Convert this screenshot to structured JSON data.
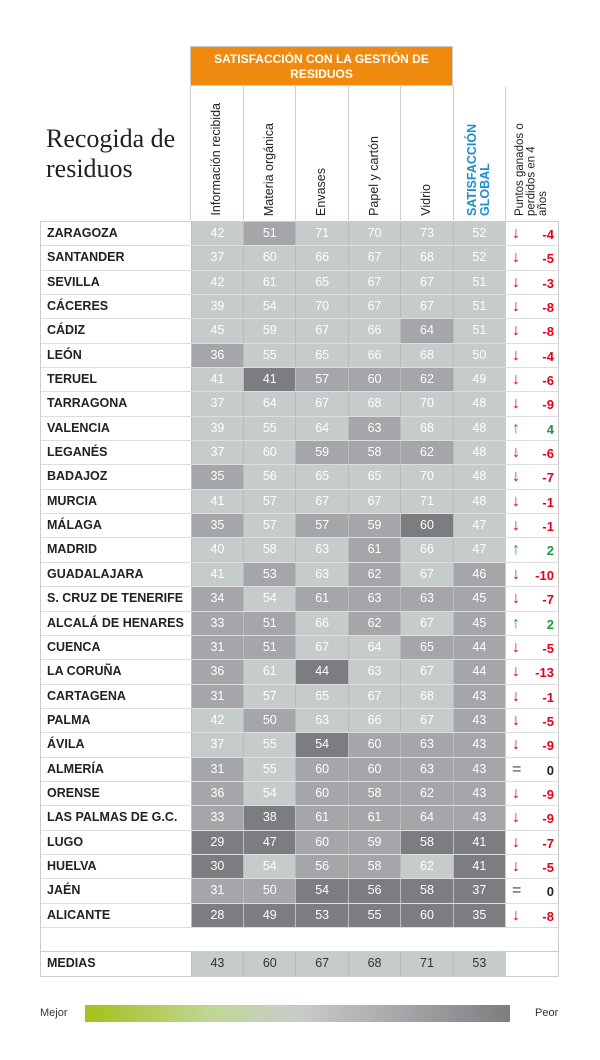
{
  "chart_data": {
    "type": "table",
    "title": "Recogida de residuos",
    "group_header": "SATISFACCIÓN CON LA GESTIÓN DE RESIDUOS",
    "columns": [
      "Información recibida",
      "Materia orgánica",
      "Envases",
      "Papel y cartón",
      "Vidrio",
      "SATISFACCIÓN GLOBAL",
      "Puntos ganados o perdidos en 4 años"
    ],
    "rows": [
      {
        "city": "ZARAGOZA",
        "values": [
          42,
          51,
          71,
          70,
          73,
          52
        ],
        "tones": [
          1,
          2,
          1,
          1,
          1,
          1
        ],
        "change": "-4",
        "trend": "down"
      },
      {
        "city": "SANTANDER",
        "values": [
          37,
          60,
          66,
          67,
          68,
          52
        ],
        "tones": [
          1,
          1,
          1,
          1,
          1,
          1
        ],
        "change": "-5",
        "trend": "down"
      },
      {
        "city": "SEVILLA",
        "values": [
          42,
          61,
          65,
          67,
          67,
          51
        ],
        "tones": [
          1,
          1,
          1,
          1,
          1,
          1
        ],
        "change": "-3",
        "trend": "down"
      },
      {
        "city": "CÁCERES",
        "values": [
          39,
          54,
          70,
          67,
          67,
          51
        ],
        "tones": [
          1,
          1,
          1,
          1,
          1,
          1
        ],
        "change": "-8",
        "trend": "down"
      },
      {
        "city": "CÁDIZ",
        "values": [
          45,
          59,
          67,
          66,
          64,
          51
        ],
        "tones": [
          1,
          1,
          1,
          1,
          2,
          1
        ],
        "change": "-8",
        "trend": "down"
      },
      {
        "city": "LEÓN",
        "values": [
          36,
          55,
          65,
          66,
          68,
          50
        ],
        "tones": [
          2,
          1,
          1,
          1,
          1,
          1
        ],
        "change": "-4",
        "trend": "down"
      },
      {
        "city": "TERUEL",
        "values": [
          41,
          41,
          57,
          60,
          62,
          49
        ],
        "tones": [
          1,
          3,
          2,
          2,
          2,
          1
        ],
        "change": "-6",
        "trend": "down"
      },
      {
        "city": "TARRAGONA",
        "values": [
          37,
          64,
          67,
          68,
          70,
          48
        ],
        "tones": [
          1,
          1,
          1,
          1,
          1,
          1
        ],
        "change": "-9",
        "trend": "down"
      },
      {
        "city": "VALENCIA",
        "values": [
          39,
          55,
          64,
          63,
          68,
          48
        ],
        "tones": [
          1,
          1,
          1,
          2,
          1,
          1
        ],
        "change": "4",
        "trend": "up"
      },
      {
        "city": "LEGANÉS",
        "values": [
          37,
          60,
          59,
          58,
          62,
          48
        ],
        "tones": [
          1,
          1,
          2,
          2,
          2,
          1
        ],
        "change": "-6",
        "trend": "down"
      },
      {
        "city": "BADAJOZ",
        "values": [
          35,
          56,
          65,
          65,
          70,
          48
        ],
        "tones": [
          2,
          1,
          1,
          1,
          1,
          1
        ],
        "change": "-7",
        "trend": "down"
      },
      {
        "city": "MURCIA",
        "values": [
          41,
          57,
          67,
          67,
          71,
          48
        ],
        "tones": [
          1,
          1,
          1,
          1,
          1,
          1
        ],
        "change": "-1",
        "trend": "down"
      },
      {
        "city": "MÁLAGA",
        "values": [
          35,
          57,
          57,
          59,
          60,
          47
        ],
        "tones": [
          2,
          1,
          2,
          2,
          3,
          1
        ],
        "change": "-1",
        "trend": "down"
      },
      {
        "city": "MADRID",
        "values": [
          40,
          58,
          63,
          61,
          66,
          47
        ],
        "tones": [
          1,
          1,
          1,
          2,
          1,
          1
        ],
        "change": "2",
        "trend": "up"
      },
      {
        "city": "GUADALAJARA",
        "values": [
          41,
          53,
          63,
          62,
          67,
          46
        ],
        "tones": [
          1,
          2,
          1,
          2,
          1,
          2
        ],
        "change": "-10",
        "trend": "down"
      },
      {
        "city": "S. CRUZ DE TENERIFE",
        "values": [
          34,
          54,
          61,
          63,
          63,
          45
        ],
        "tones": [
          2,
          1,
          2,
          2,
          2,
          2
        ],
        "change": "-7",
        "trend": "down"
      },
      {
        "city": "ALCALÁ DE HENARES",
        "values": [
          33,
          51,
          66,
          62,
          67,
          45
        ],
        "tones": [
          2,
          2,
          1,
          2,
          1,
          2
        ],
        "change": "2",
        "trend": "up"
      },
      {
        "city": "CUENCA",
        "values": [
          31,
          51,
          67,
          64,
          65,
          44
        ],
        "tones": [
          2,
          2,
          1,
          1,
          2,
          2
        ],
        "change": "-5",
        "trend": "down"
      },
      {
        "city": "LA CORUÑA",
        "values": [
          36,
          61,
          44,
          63,
          67,
          44
        ],
        "tones": [
          2,
          1,
          3,
          1,
          1,
          2
        ],
        "change": "-13",
        "trend": "down"
      },
      {
        "city": "CARTAGENA",
        "values": [
          31,
          57,
          65,
          67,
          68,
          43
        ],
        "tones": [
          2,
          1,
          1,
          1,
          1,
          2
        ],
        "change": "-1",
        "trend": "down"
      },
      {
        "city": "PALMA",
        "values": [
          42,
          50,
          63,
          66,
          67,
          43
        ],
        "tones": [
          1,
          2,
          1,
          1,
          1,
          2
        ],
        "change": "-5",
        "trend": "down"
      },
      {
        "city": "ÁVILA",
        "values": [
          37,
          55,
          54,
          60,
          63,
          43
        ],
        "tones": [
          1,
          1,
          3,
          2,
          2,
          2
        ],
        "change": "-9",
        "trend": "down"
      },
      {
        "city": "ALMERÍA",
        "values": [
          31,
          55,
          60,
          60,
          63,
          43
        ],
        "tones": [
          2,
          1,
          2,
          2,
          2,
          2
        ],
        "change": "0",
        "trend": "equal"
      },
      {
        "city": "ORENSE",
        "values": [
          36,
          54,
          60,
          58,
          62,
          43
        ],
        "tones": [
          2,
          1,
          2,
          2,
          2,
          2
        ],
        "change": "-9",
        "trend": "down"
      },
      {
        "city": "LAS PALMAS DE G.C.",
        "values": [
          33,
          38,
          61,
          61,
          64,
          43
        ],
        "tones": [
          2,
          3,
          2,
          2,
          2,
          2
        ],
        "change": "-9",
        "trend": "down"
      },
      {
        "city": "LUGO",
        "values": [
          29,
          47,
          60,
          59,
          58,
          41
        ],
        "tones": [
          3,
          3,
          2,
          2,
          3,
          3
        ],
        "change": "-7",
        "trend": "down"
      },
      {
        "city": "HUELVA",
        "values": [
          30,
          54,
          56,
          58,
          62,
          41
        ],
        "tones": [
          3,
          1,
          2,
          2,
          1,
          3
        ],
        "change": "-5",
        "trend": "down"
      },
      {
        "city": "JAÉN",
        "values": [
          31,
          50,
          54,
          56,
          58,
          37
        ],
        "tones": [
          2,
          2,
          3,
          3,
          3,
          3
        ],
        "change": "0",
        "trend": "equal"
      },
      {
        "city": "ALICANTE",
        "values": [
          28,
          49,
          53,
          55,
          60,
          35
        ],
        "tones": [
          3,
          3,
          3,
          3,
          3,
          3
        ],
        "change": "-8",
        "trend": "down"
      }
    ],
    "averages": {
      "label": "MEDIAS",
      "values": [
        43,
        60,
        67,
        68,
        71,
        53
      ]
    },
    "legend": {
      "left": "Mejor",
      "right": "Peor"
    }
  },
  "colors": {
    "orange": "#ef8a0f",
    "blue": "#1b8fd0",
    "down": "#e3001b",
    "up": "#1a9b3c"
  },
  "icons": {
    "down": "↓",
    "up": "↑",
    "equal": "="
  }
}
